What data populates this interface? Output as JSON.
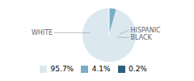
{
  "chart_data": {
    "type": "pie",
    "categories": [
      "WHITE",
      "HISPANIC",
      "BLACK"
    ],
    "values": [
      95.7,
      4.1,
      0.2
    ],
    "value_labels": [
      "95.7%",
      "4.1%",
      "0.2%"
    ],
    "colors": [
      "#dce8f0",
      "#7aaec4",
      "#2d5f7d"
    ],
    "legend": "bottom"
  }
}
